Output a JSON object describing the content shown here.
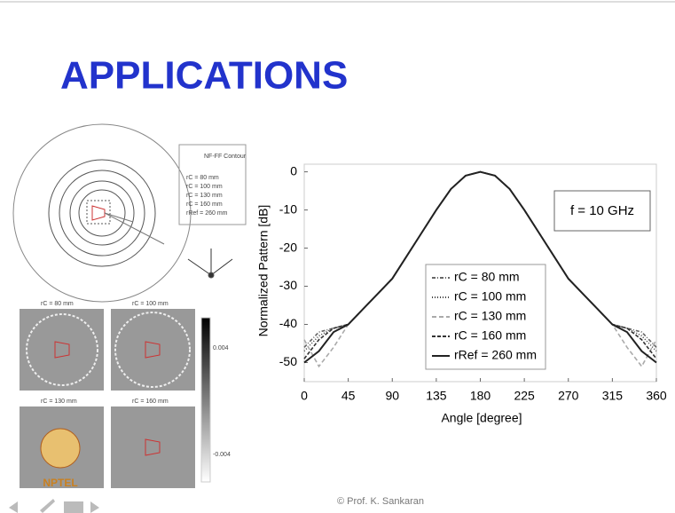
{
  "title": "APPLICATIONS",
  "footer": "© Prof. K. Sankaran",
  "logo": "NPTEL",
  "geometry": {
    "legend_title": "NF-FF Contour",
    "legend": [
      "rC = 80 mm",
      "rC = 100 mm",
      "rC = 130 mm",
      "rC = 160 mm",
      "rRef = 260 mm"
    ]
  },
  "field_maps": {
    "titles": [
      "rC = 80 mm",
      "rC = 100 mm",
      "rC = 130 mm",
      "rC = 160 mm"
    ],
    "colorbar": [
      "0.004",
      "-0.004"
    ]
  },
  "chart_data": {
    "type": "line",
    "xlabel": "Angle [degree]",
    "ylabel": "Normalized Pattern [dB]",
    "annotation": "f = 10 GHz",
    "x": [
      0,
      15,
      30,
      45,
      60,
      75,
      90,
      105,
      120,
      135,
      150,
      165,
      180,
      195,
      210,
      225,
      240,
      255,
      270,
      285,
      300,
      315,
      330,
      345,
      360
    ],
    "xlim": [
      0,
      360
    ],
    "xticks": [
      0,
      45,
      90,
      135,
      180,
      225,
      270,
      315,
      360
    ],
    "ylim": [
      -55,
      2
    ],
    "yticks": [
      0,
      -10,
      -20,
      -30,
      -40,
      -50
    ],
    "series": [
      {
        "name": "rC = 80 mm",
        "color": "#666666",
        "values": [
          -46,
          -42,
          -41,
          -40,
          -36,
          -32,
          -28,
          -22,
          -16,
          -10,
          -4.5,
          -1,
          0,
          -1,
          -4.5,
          -10,
          -16,
          -22,
          -28,
          -32,
          -36,
          -40,
          -41,
          -42,
          -46
        ]
      },
      {
        "name": "rC = 100 mm",
        "color": "#444444",
        "values": [
          -47,
          -43,
          -41,
          -40,
          -36,
          -32,
          -28,
          -22,
          -16,
          -10,
          -4.5,
          -1,
          0,
          -1,
          -4.5,
          -10,
          -16,
          -22,
          -28,
          -32,
          -36,
          -40,
          -41,
          -43,
          -47
        ]
      },
      {
        "name": "rC = 130 mm",
        "color": "#aaaaaa",
        "values": [
          -44,
          -51,
          -46,
          -40,
          -36,
          -32,
          -28,
          -22,
          -16,
          -10,
          -4.5,
          -1,
          0,
          -1,
          -4.5,
          -10,
          -16,
          -22,
          -28,
          -32,
          -36,
          -40,
          -46,
          -51,
          -44
        ]
      },
      {
        "name": "rC = 160 mm",
        "color": "#333333",
        "values": [
          -49,
          -44,
          -41,
          -40,
          -36,
          -32,
          -28,
          -22,
          -16,
          -10,
          -4.5,
          -1,
          0,
          -1,
          -4.5,
          -10,
          -16,
          -22,
          -28,
          -32,
          -36,
          -40,
          -41,
          -44,
          -49
        ]
      },
      {
        "name": "rRef = 260 mm",
        "color": "#222222",
        "values": [
          -50,
          -47,
          -42,
          -40,
          -36,
          -32,
          -28,
          -22,
          -16,
          -10,
          -4.5,
          -1,
          0,
          -1,
          -4.5,
          -10,
          -16,
          -22,
          -28,
          -32,
          -36,
          -40,
          -42,
          -47,
          -50
        ]
      }
    ]
  }
}
